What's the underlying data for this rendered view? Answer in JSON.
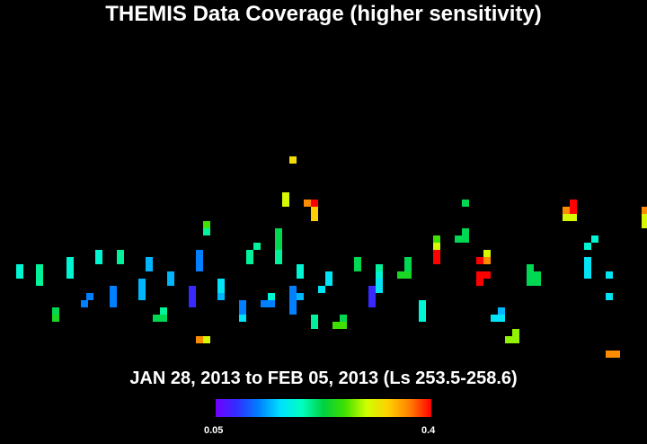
{
  "chart_data": {
    "type": "heatmap",
    "title": "THEMIS Data Coverage (higher sensitivity)",
    "subtitle": "JAN 28, 2013 to FEB 05, 2013 (Ls 253.5-258.6)",
    "colorbar": {
      "min_label": "0.05",
      "max_label": "0.4",
      "range": [
        0.05,
        0.4
      ],
      "colors": [
        "#7000ff",
        "#3030ff",
        "#0080ff",
        "#00e0ff",
        "#00ffc0",
        "#00d040",
        "#40e000",
        "#d0ff00",
        "#ffd000",
        "#ff8000",
        "#ff0000"
      ]
    },
    "cells": [
      [
        18,
        294,
        0.18
      ],
      [
        18,
        302,
        0.18
      ],
      [
        40,
        294,
        0.2
      ],
      [
        40,
        302,
        0.2
      ],
      [
        40,
        310,
        0.2
      ],
      [
        74,
        286,
        0.18
      ],
      [
        74,
        294,
        0.18
      ],
      [
        74,
        302,
        0.18
      ],
      [
        58,
        342,
        0.22
      ],
      [
        58,
        350,
        0.24
      ],
      [
        96,
        326,
        0.12
      ],
      [
        90,
        334,
        0.12
      ],
      [
        106,
        278,
        0.18
      ],
      [
        106,
        286,
        0.18
      ],
      [
        122,
        318,
        0.12
      ],
      [
        122,
        326,
        0.12
      ],
      [
        122,
        334,
        0.12
      ],
      [
        130,
        278,
        0.2
      ],
      [
        130,
        286,
        0.2
      ],
      [
        154,
        310,
        0.14
      ],
      [
        154,
        318,
        0.14
      ],
      [
        154,
        326,
        0.14
      ],
      [
        162,
        286,
        0.14
      ],
      [
        162,
        294,
        0.14
      ],
      [
        178,
        342,
        0.2
      ],
      [
        170,
        350,
        0.22
      ],
      [
        178,
        350,
        0.22
      ],
      [
        186,
        302,
        0.14
      ],
      [
        186,
        310,
        0.14
      ],
      [
        210,
        318,
        0.08
      ],
      [
        210,
        326,
        0.08
      ],
      [
        210,
        334,
        0.08
      ],
      [
        218,
        278,
        0.12
      ],
      [
        218,
        286,
        0.12
      ],
      [
        218,
        294,
        0.12
      ],
      [
        226,
        246,
        0.26
      ],
      [
        226,
        254,
        0.2
      ],
      [
        242,
        310,
        0.16
      ],
      [
        242,
        318,
        0.16
      ],
      [
        242,
        326,
        0.14
      ],
      [
        266,
        334,
        0.12
      ],
      [
        266,
        342,
        0.12
      ],
      [
        266,
        350,
        0.16
      ],
      [
        274,
        278,
        0.2
      ],
      [
        274,
        286,
        0.2
      ],
      [
        282,
        270,
        0.2
      ],
      [
        298,
        326,
        0.18
      ],
      [
        290,
        334,
        0.12
      ],
      [
        298,
        334,
        0.12
      ],
      [
        306,
        254,
        0.22
      ],
      [
        306,
        262,
        0.22
      ],
      [
        306,
        270,
        0.22
      ],
      [
        306,
        278,
        0.2
      ],
      [
        306,
        286,
        0.2
      ],
      [
        314,
        214,
        0.3
      ],
      [
        314,
        222,
        0.3
      ],
      [
        322,
        174,
        0.32
      ],
      [
        322,
        318,
        0.12
      ],
      [
        322,
        326,
        0.12
      ],
      [
        322,
        334,
        0.12
      ],
      [
        322,
        342,
        0.12
      ],
      [
        330,
        294,
        0.18
      ],
      [
        330,
        302,
        0.18
      ],
      [
        330,
        326,
        0.14
      ],
      [
        338,
        222,
        0.36
      ],
      [
        346,
        222,
        0.4
      ],
      [
        346,
        230,
        0.33
      ],
      [
        346,
        238,
        0.33
      ],
      [
        346,
        350,
        0.2
      ],
      [
        346,
        358,
        0.2
      ],
      [
        354,
        318,
        0.16
      ],
      [
        362,
        302,
        0.16
      ],
      [
        362,
        310,
        0.16
      ],
      [
        370,
        358,
        0.26
      ],
      [
        378,
        358,
        0.26
      ],
      [
        378,
        350,
        0.22
      ],
      [
        394,
        286,
        0.22
      ],
      [
        394,
        294,
        0.22
      ],
      [
        410,
        318,
        0.08
      ],
      [
        410,
        326,
        0.08
      ],
      [
        410,
        334,
        0.08
      ],
      [
        418,
        294,
        0.2
      ],
      [
        418,
        302,
        0.18
      ],
      [
        418,
        310,
        0.16
      ],
      [
        418,
        318,
        0.16
      ],
      [
        442,
        302,
        0.24
      ],
      [
        450,
        302,
        0.24
      ],
      [
        450,
        294,
        0.22
      ],
      [
        450,
        286,
        0.22
      ],
      [
        466,
        334,
        0.18
      ],
      [
        466,
        342,
        0.18
      ],
      [
        466,
        350,
        0.18
      ],
      [
        482,
        262,
        0.26
      ],
      [
        482,
        270,
        0.3
      ],
      [
        482,
        278,
        0.4
      ],
      [
        482,
        286,
        0.4
      ],
      [
        506,
        262,
        0.22
      ],
      [
        514,
        262,
        0.22
      ],
      [
        514,
        254,
        0.22
      ],
      [
        514,
        222,
        0.22
      ],
      [
        530,
        286,
        0.4
      ],
      [
        538,
        278,
        0.3
      ],
      [
        538,
        286,
        0.36
      ],
      [
        530,
        302,
        0.4
      ],
      [
        538,
        302,
        0.4
      ],
      [
        530,
        310,
        0.4
      ],
      [
        546,
        350,
        0.16
      ],
      [
        554,
        350,
        0.16
      ],
      [
        554,
        342,
        0.14
      ],
      [
        562,
        374,
        0.28
      ],
      [
        570,
        374,
        0.28
      ],
      [
        570,
        366,
        0.28
      ],
      [
        586,
        294,
        0.22
      ],
      [
        586,
        302,
        0.22
      ],
      [
        594,
        302,
        0.22
      ],
      [
        586,
        310,
        0.22
      ],
      [
        594,
        310,
        0.22
      ],
      [
        626,
        238,
        0.3
      ],
      [
        634,
        238,
        0.3
      ],
      [
        626,
        230,
        0.36
      ],
      [
        634,
        222,
        0.4
      ],
      [
        634,
        230,
        0.4
      ],
      [
        650,
        270,
        0.18
      ],
      [
        658,
        262,
        0.18
      ],
      [
        650,
        286,
        0.16
      ],
      [
        650,
        294,
        0.16
      ],
      [
        650,
        302,
        0.16
      ],
      [
        674,
        302,
        0.16
      ],
      [
        674,
        326,
        0.16
      ],
      [
        714,
        230,
        0.36
      ],
      [
        714,
        238,
        0.3
      ],
      [
        714,
        246,
        0.3
      ],
      [
        674,
        390,
        0.36
      ],
      [
        682,
        390,
        0.36
      ],
      [
        218,
        374,
        0.36
      ],
      [
        226,
        374,
        0.3
      ]
    ]
  }
}
